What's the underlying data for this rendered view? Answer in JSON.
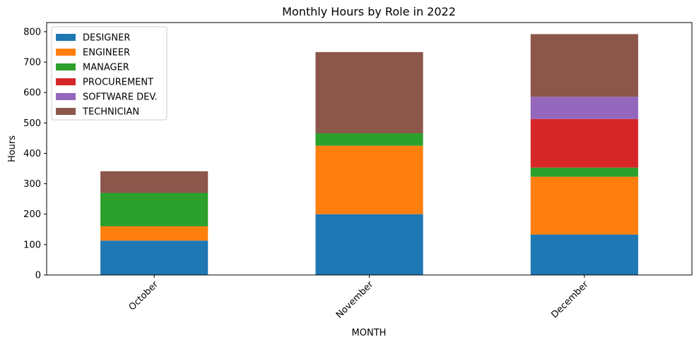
{
  "chart_data": {
    "type": "bar",
    "stacked": true,
    "title": "Monthly Hours by Role in 2022",
    "xlabel": "MONTH",
    "ylabel": "Hours",
    "ylim": [
      0,
      830
    ],
    "yticks": [
      0,
      100,
      200,
      300,
      400,
      500,
      600,
      700,
      800
    ],
    "grid": false,
    "legend_position": "top-left",
    "categories": [
      "October",
      "November",
      "December"
    ],
    "series": [
      {
        "name": "DESIGNER",
        "color": "#1f77b4",
        "values": [
          113,
          200,
          133
        ]
      },
      {
        "name": "ENGINEER",
        "color": "#ff7f0e",
        "values": [
          47,
          225,
          190
        ]
      },
      {
        "name": "MANAGER",
        "color": "#2ca02c",
        "values": [
          110,
          41,
          30
        ]
      },
      {
        "name": "PROCUREMENT",
        "color": "#d62728",
        "values": [
          0,
          0,
          160
        ]
      },
      {
        "name": "SOFTWARE DEV.",
        "color": "#9467bd",
        "values": [
          0,
          0,
          73
        ]
      },
      {
        "name": "TECHNICIAN",
        "color": "#8c564b",
        "values": [
          71,
          267,
          206
        ]
      }
    ]
  }
}
